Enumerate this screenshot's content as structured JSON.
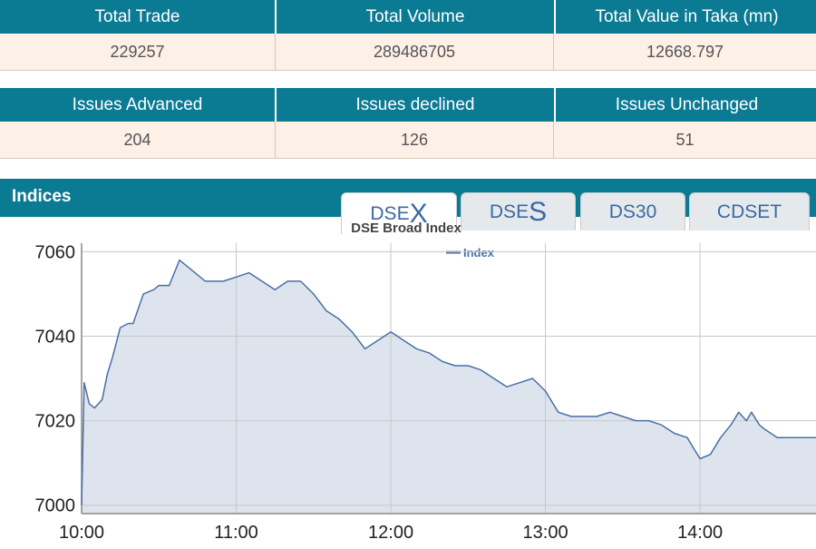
{
  "summary1": {
    "headers": [
      "Total Trade",
      "Total Volume",
      "Total Value in Taka (mn)"
    ],
    "values": [
      "229257",
      "289486705",
      "12668.797"
    ]
  },
  "summary2": {
    "headers": [
      "Issues Advanced",
      "Issues declined",
      "Issues Unchanged"
    ],
    "values": [
      "204",
      "126",
      "51"
    ]
  },
  "indices": {
    "title": "Indices",
    "tabs": [
      {
        "prefix": "DSE",
        "suffix": "X"
      },
      {
        "prefix": "DSE",
        "suffix": "S"
      },
      {
        "label": "DS30"
      },
      {
        "label": "CDSET"
      }
    ],
    "active_tab": 0
  },
  "colors": {
    "header_bg": "#0b7a93",
    "row_bg": "#fcf0e7",
    "line": "#4a6fa5",
    "fill": "#dde4ee"
  },
  "chart_data": {
    "type": "area",
    "title": "DSE Broad Index",
    "legend": "Index",
    "legend_position": "top-center",
    "grid": true,
    "xlim": [
      "10:00",
      "14:45"
    ],
    "ylim": [
      6998,
      7062
    ],
    "x_ticks": [
      "10:00",
      "11:00",
      "12:00",
      "13:00",
      "14:00"
    ],
    "y_ticks": [
      7000,
      7020,
      7040,
      7060
    ],
    "series": [
      {
        "name": "Index",
        "x": [
          "10:00",
          "10:01",
          "10:03",
          "10:05",
          "10:08",
          "10:10",
          "10:12",
          "10:15",
          "10:18",
          "10:20",
          "10:24",
          "10:28",
          "10:30",
          "10:34",
          "10:38",
          "10:40",
          "10:44",
          "10:48",
          "10:50",
          "10:55",
          "11:00",
          "11:05",
          "11:10",
          "11:15",
          "11:20",
          "11:25",
          "11:30",
          "11:35",
          "11:40",
          "11:45",
          "11:50",
          "11:55",
          "12:00",
          "12:05",
          "12:10",
          "12:15",
          "12:20",
          "12:25",
          "12:30",
          "12:35",
          "12:40",
          "12:45",
          "12:50",
          "12:55",
          "13:00",
          "13:05",
          "13:10",
          "13:15",
          "13:20",
          "13:25",
          "13:30",
          "13:35",
          "13:40",
          "13:45",
          "13:50",
          "13:55",
          "14:00",
          "14:04",
          "14:08",
          "14:12",
          "14:15",
          "14:18",
          "14:20",
          "14:23",
          "14:25",
          "14:30",
          "14:35",
          "14:40",
          "14:45"
        ],
        "values": [
          7000,
          7029,
          7024,
          7023,
          7025,
          7031,
          7035,
          7042,
          7043,
          7043,
          7050,
          7051,
          7052,
          7052,
          7058,
          7057,
          7055,
          7053,
          7053,
          7053,
          7054,
          7055,
          7053,
          7051,
          7053,
          7053,
          7050,
          7046,
          7044,
          7041,
          7037,
          7039,
          7041,
          7039,
          7037,
          7036,
          7034,
          7033,
          7033,
          7032,
          7030,
          7028,
          7029,
          7030,
          7027,
          7022,
          7021,
          7021,
          7021,
          7022,
          7021,
          7020,
          7020,
          7019,
          7017,
          7016,
          7011,
          7012,
          7016,
          7019,
          7022,
          7020,
          7022,
          7019,
          7018,
          7016,
          7016,
          7016,
          7016
        ]
      }
    ]
  }
}
